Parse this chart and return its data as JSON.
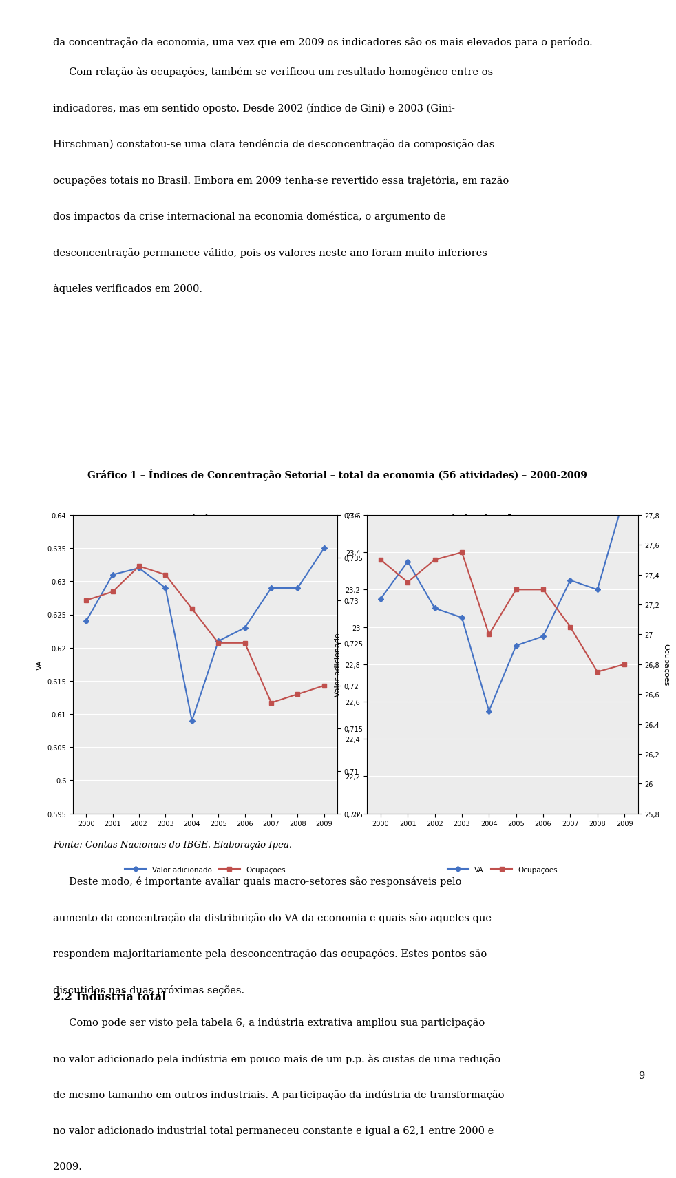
{
  "title": "Gráfico 1 – Índices de Concentração Setorial – total da economia (56 atividades) – 2000-2009",
  "subtitle_left": "Gini",
  "subtitle_right": "Gini-Hirschman",
  "years": [
    2000,
    2001,
    2002,
    2003,
    2004,
    2005,
    2006,
    2007,
    2008,
    2009
  ],
  "gini_va": [
    0.624,
    0.631,
    0.632,
    0.629,
    0.609,
    0.621,
    0.623,
    0.629,
    0.629,
    0.635
  ],
  "gini_ocup": [
    0.73,
    0.731,
    0.734,
    0.733,
    0.729,
    0.725,
    0.725,
    0.718,
    0.719,
    0.72
  ],
  "gini_va_ylim": [
    0.595,
    0.64
  ],
  "gini_va_yticks": [
    0.595,
    0.6,
    0.605,
    0.61,
    0.615,
    0.62,
    0.625,
    0.63,
    0.635,
    0.64
  ],
  "gini_ocup_ylim": [
    0.705,
    0.74
  ],
  "gini_ocup_yticks": [
    0.705,
    0.71,
    0.715,
    0.72,
    0.725,
    0.73,
    0.735,
    0.74
  ],
  "gh_va": [
    23.15,
    23.35,
    23.1,
    23.05,
    22.55,
    22.9,
    22.95,
    23.25,
    23.2,
    23.7
  ],
  "gh_ocup": [
    27.5,
    27.35,
    27.5,
    27.55,
    27.0,
    27.3,
    27.3,
    27.05,
    26.75,
    26.8
  ],
  "gh_va_ylim": [
    22.0,
    23.6
  ],
  "gh_va_yticks": [
    22.0,
    22.2,
    22.4,
    22.6,
    22.8,
    23.0,
    23.2,
    23.4,
    23.6
  ],
  "gh_ocup_ylim": [
    25.8,
    27.8
  ],
  "gh_ocup_yticks": [
    25.8,
    26.0,
    26.2,
    26.4,
    26.6,
    26.8,
    27.0,
    27.2,
    27.4,
    27.6,
    27.8
  ],
  "blue_color": "#4472C4",
  "red_color": "#C0504D",
  "blue_marker": "D",
  "red_marker": "s",
  "ylabel_left_gini": "VA",
  "ylabel_right_gini": "Ocupações",
  "ylabel_left_gh": "Valor adicionado",
  "ylabel_right_gh": "Ocupações",
  "legend_left_blue": "Valor adicionado",
  "legend_left_red": "Ocupações",
  "legend_right_blue": "VA",
  "legend_right_red": "Ocupações",
  "fonte": "Fonte: Contas Nacionais do IBGE. Elaboração Ipea.",
  "background_color": "#ffffff",
  "plot_bg": "#ececec",
  "text_para1": "da concentração da economia, uma vez que em 2009 os indicadores são os mais elevados para o período.",
  "text_para2": "Com relação às ocupações, também se verificou um resultado homogêneo entre os indicadores, mas em sentido oposto. Desde 2002 (índice de Gini) e 2003 (Gini-Hirschman) constatou-se uma clara tendência de desconcentração da composição das ocupações totais no Brasil. Embora em 2009 tenha-se revertido essa trajetória, em razão dos impactos da crise internacional na economia doméstica, o argumento de desconcentração permanece válido, pois os valores neste ano foram muito inferiores àqueles verificados em 2000.",
  "text_para3": "Deste modo, é importante avaliar quais macro-setores são responsáveis pelo aumento da concentração da distribuição do VA da economia e quais são aqueles que respondem majoritariamente pela desconcentração das ocupações. Estes pontos são discutidos nas duas próximas seções.",
  "text_section": "2.2 Indústria total",
  "text_para4": "Como pode ser visto pela tabela 6, a indústria extrativa ampliou sua participação no valor adicionado pela indústria em pouco mais de um p.p. às custas de uma redução de mesmo tamanho em outros industriais. A participação da indústria de transformação no valor adicionado industrial total permaneceu constante e igual a 62,1 entre 2000 e 2009.",
  "page_num": "9"
}
